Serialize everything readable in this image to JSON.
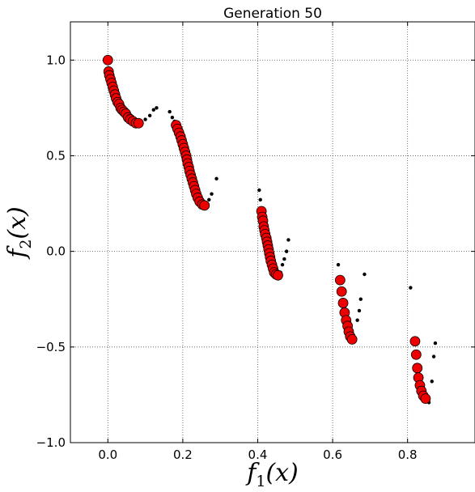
{
  "chart_data": {
    "type": "scatter",
    "title": "Generation 50",
    "xlabel_base": "f",
    "xlabel_sub": "1",
    "xlabel_arg": "(x)",
    "ylabel_base": "f",
    "ylabel_sub": "2",
    "ylabel_arg": "(x)",
    "xlim": [
      -0.1,
      0.98
    ],
    "ylim": [
      -1.0,
      1.2
    ],
    "x_ticks": [
      0.0,
      0.2,
      0.4,
      0.6,
      0.8
    ],
    "x_tick_labels": [
      "0.0",
      "0.2",
      "0.4",
      "0.6",
      "0.8"
    ],
    "y_ticks": [
      -1.0,
      -0.5,
      0.0,
      0.5,
      1.0
    ],
    "y_tick_labels": [
      "−1.0",
      "−0.5",
      "0.0",
      "0.5",
      "1.0"
    ],
    "grid": true,
    "colors": {
      "front": "#ee0000",
      "population": "#000000"
    },
    "series": [
      {
        "marker": "large-red-circle",
        "points": [
          [
            0.0,
            1.0
          ],
          [
            0.002,
            0.94
          ],
          [
            0.004,
            0.92
          ],
          [
            0.007,
            0.9
          ],
          [
            0.01,
            0.88
          ],
          [
            0.013,
            0.86
          ],
          [
            0.016,
            0.84
          ],
          [
            0.019,
            0.82
          ],
          [
            0.022,
            0.8
          ],
          [
            0.026,
            0.78
          ],
          [
            0.03,
            0.77
          ],
          [
            0.034,
            0.75
          ],
          [
            0.038,
            0.74
          ],
          [
            0.043,
            0.73
          ],
          [
            0.048,
            0.72
          ],
          [
            0.054,
            0.7
          ],
          [
            0.06,
            0.69
          ],
          [
            0.067,
            0.68
          ],
          [
            0.075,
            0.67
          ],
          [
            0.082,
            0.67
          ],
          [
            0.182,
            0.66
          ],
          [
            0.186,
            0.64
          ],
          [
            0.19,
            0.62
          ],
          [
            0.194,
            0.6
          ],
          [
            0.197,
            0.58
          ],
          [
            0.2,
            0.56
          ],
          [
            0.203,
            0.54
          ],
          [
            0.206,
            0.52
          ],
          [
            0.209,
            0.5
          ],
          [
            0.211,
            0.48
          ],
          [
            0.213,
            0.46
          ],
          [
            0.216,
            0.44
          ],
          [
            0.218,
            0.42
          ],
          [
            0.221,
            0.4
          ],
          [
            0.224,
            0.38
          ],
          [
            0.227,
            0.36
          ],
          [
            0.23,
            0.34
          ],
          [
            0.233,
            0.32
          ],
          [
            0.236,
            0.3
          ],
          [
            0.24,
            0.28
          ],
          [
            0.245,
            0.26
          ],
          [
            0.252,
            0.245
          ],
          [
            0.258,
            0.24
          ],
          [
            0.41,
            0.21
          ],
          [
            0.412,
            0.18
          ],
          [
            0.414,
            0.16
          ],
          [
            0.416,
            0.13
          ],
          [
            0.418,
            0.11
          ],
          [
            0.42,
            0.09
          ],
          [
            0.423,
            0.07
          ],
          [
            0.425,
            0.05
          ],
          [
            0.427,
            0.03
          ],
          [
            0.429,
            0.01
          ],
          [
            0.431,
            -0.01
          ],
          [
            0.433,
            -0.03
          ],
          [
            0.435,
            -0.05
          ],
          [
            0.438,
            -0.07
          ],
          [
            0.441,
            -0.09
          ],
          [
            0.444,
            -0.11
          ],
          [
            0.449,
            -0.12
          ],
          [
            0.454,
            -0.125
          ],
          [
            0.62,
            -0.15
          ],
          [
            0.624,
            -0.21
          ],
          [
            0.628,
            -0.27
          ],
          [
            0.632,
            -0.32
          ],
          [
            0.636,
            -0.36
          ],
          [
            0.64,
            -0.39
          ],
          [
            0.643,
            -0.42
          ],
          [
            0.647,
            -0.445
          ],
          [
            0.652,
            -0.46
          ],
          [
            0.82,
            -0.47
          ],
          [
            0.823,
            -0.54
          ],
          [
            0.826,
            -0.61
          ],
          [
            0.829,
            -0.66
          ],
          [
            0.833,
            -0.7
          ],
          [
            0.837,
            -0.73
          ],
          [
            0.842,
            -0.755
          ],
          [
            0.848,
            -0.77
          ]
        ]
      },
      {
        "marker": "small-black-dot",
        "points": [
          [
            0.088,
            0.68
          ],
          [
            0.1,
            0.69
          ],
          [
            0.112,
            0.71
          ],
          [
            0.122,
            0.74
          ],
          [
            0.13,
            0.75
          ],
          [
            0.165,
            0.73
          ],
          [
            0.172,
            0.7
          ],
          [
            0.178,
            0.68
          ],
          [
            0.262,
            0.25
          ],
          [
            0.27,
            0.27
          ],
          [
            0.277,
            0.3
          ],
          [
            0.29,
            0.38
          ],
          [
            0.404,
            0.32
          ],
          [
            0.407,
            0.27
          ],
          [
            0.461,
            -0.11
          ],
          [
            0.466,
            -0.07
          ],
          [
            0.471,
            -0.04
          ],
          [
            0.477,
            0.0
          ],
          [
            0.482,
            0.06
          ],
          [
            0.615,
            -0.07
          ],
          [
            0.655,
            -0.44
          ],
          [
            0.666,
            -0.36
          ],
          [
            0.671,
            -0.31
          ],
          [
            0.675,
            -0.25
          ],
          [
            0.685,
            -0.12
          ],
          [
            0.808,
            -0.19
          ],
          [
            0.857,
            -0.79
          ],
          [
            0.865,
            -0.68
          ],
          [
            0.87,
            -0.55
          ],
          [
            0.874,
            -0.48
          ]
        ]
      }
    ]
  }
}
